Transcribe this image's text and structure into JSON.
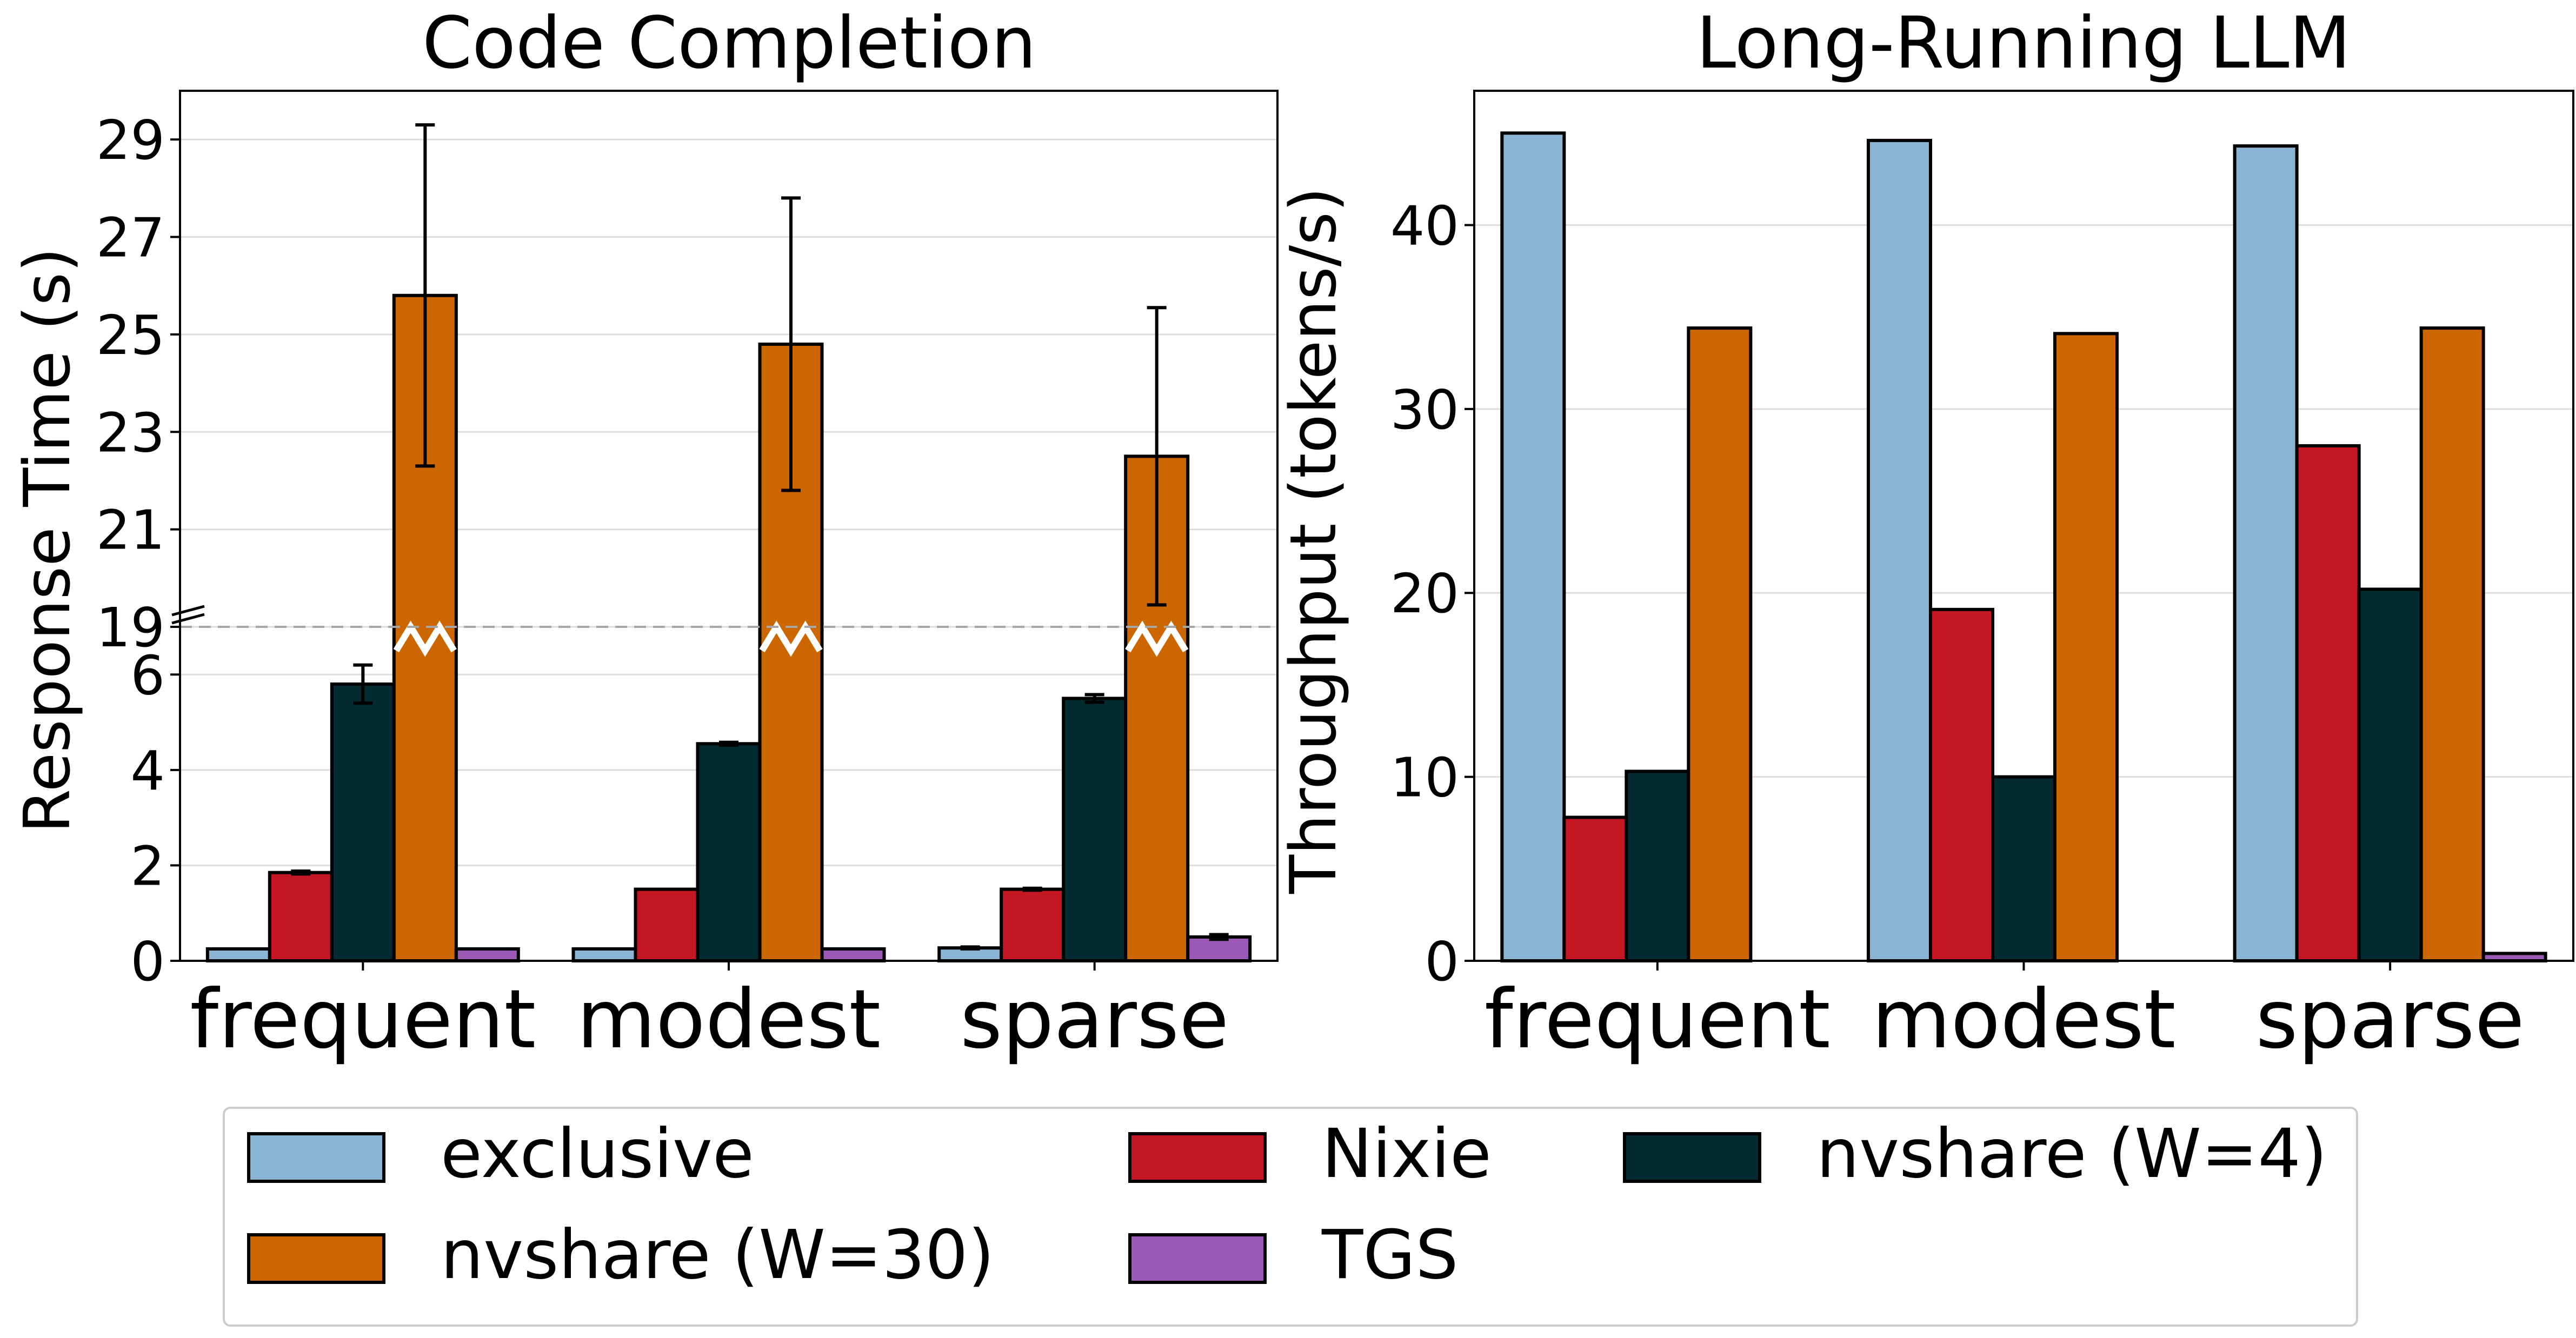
{
  "colors": {
    "exclusive": "#89b4d3",
    "nixie": "#c41623",
    "nvshare_w4": "#042b31",
    "nvshare_w30": "#cc6600",
    "tgs": "#9b59b6",
    "grid": "#dddddd",
    "break_line": "#a6a6a6"
  },
  "legend": {
    "items": [
      {
        "key": "exclusive",
        "label": "exclusive"
      },
      {
        "key": "nixie",
        "label": "Nixie"
      },
      {
        "key": "nvshare_w4",
        "label": "nvshare (W=4)"
      },
      {
        "key": "nvshare_w30",
        "label": "nvshare (W=30)"
      },
      {
        "key": "tgs",
        "label": "TGS"
      }
    ]
  },
  "chart_data": [
    {
      "type": "bar",
      "title": "Code Completion",
      "xlabel": "",
      "ylabel": "Response Time (s)",
      "categories": [
        "frequent",
        "modest",
        "sparse"
      ],
      "broken_axis": {
        "lower_range": [
          0,
          7
        ],
        "upper_range": [
          19,
          30
        ],
        "lower_ticks": [
          0,
          2,
          4,
          6
        ],
        "upper_ticks": [
          19,
          21,
          23,
          25,
          27,
          29
        ]
      },
      "series": [
        {
          "key": "exclusive",
          "name": "exclusive",
          "values": [
            0.25,
            0.25,
            0.27
          ],
          "errors": [
            0,
            0,
            0.02
          ]
        },
        {
          "key": "nixie",
          "name": "Nixie",
          "values": [
            1.85,
            1.5,
            1.5
          ],
          "errors": [
            0.03,
            0,
            0.02
          ]
        },
        {
          "key": "nvshare_w4",
          "name": "nvshare (W=4)",
          "values": [
            5.8,
            4.55,
            5.5
          ],
          "errors": [
            0.4,
            0.03,
            0.08
          ]
        },
        {
          "key": "nvshare_w30",
          "name": "nvshare (W=30)",
          "values": [
            25.8,
            24.8,
            22.5
          ],
          "errors": [
            3.5,
            3.0,
            3.05
          ]
        },
        {
          "key": "tgs",
          "name": "TGS",
          "values": [
            0.25,
            0.25,
            0.5
          ],
          "errors": [
            0,
            0,
            0.05
          ]
        }
      ]
    },
    {
      "type": "bar",
      "title": "Long-Running LLM",
      "xlabel": "",
      "ylabel": "Throughput (tokens/s)",
      "categories": [
        "frequent",
        "modest",
        "sparse"
      ],
      "ylim": [
        0,
        47.3
      ],
      "yticks": [
        0,
        10,
        20,
        30,
        40
      ],
      "series": [
        {
          "key": "exclusive",
          "name": "exclusive",
          "values": [
            45.0,
            44.6,
            44.3
          ]
        },
        {
          "key": "nixie",
          "name": "Nixie",
          "values": [
            7.8,
            19.1,
            28.0
          ]
        },
        {
          "key": "nvshare_w4",
          "name": "nvshare (W=4)",
          "values": [
            10.3,
            10.0,
            20.2
          ]
        },
        {
          "key": "nvshare_w30",
          "name": "nvshare (W=30)",
          "values": [
            34.4,
            34.1,
            34.4
          ]
        },
        {
          "key": "tgs",
          "name": "TGS",
          "values": [
            0,
            0,
            0.4
          ]
        }
      ]
    }
  ]
}
